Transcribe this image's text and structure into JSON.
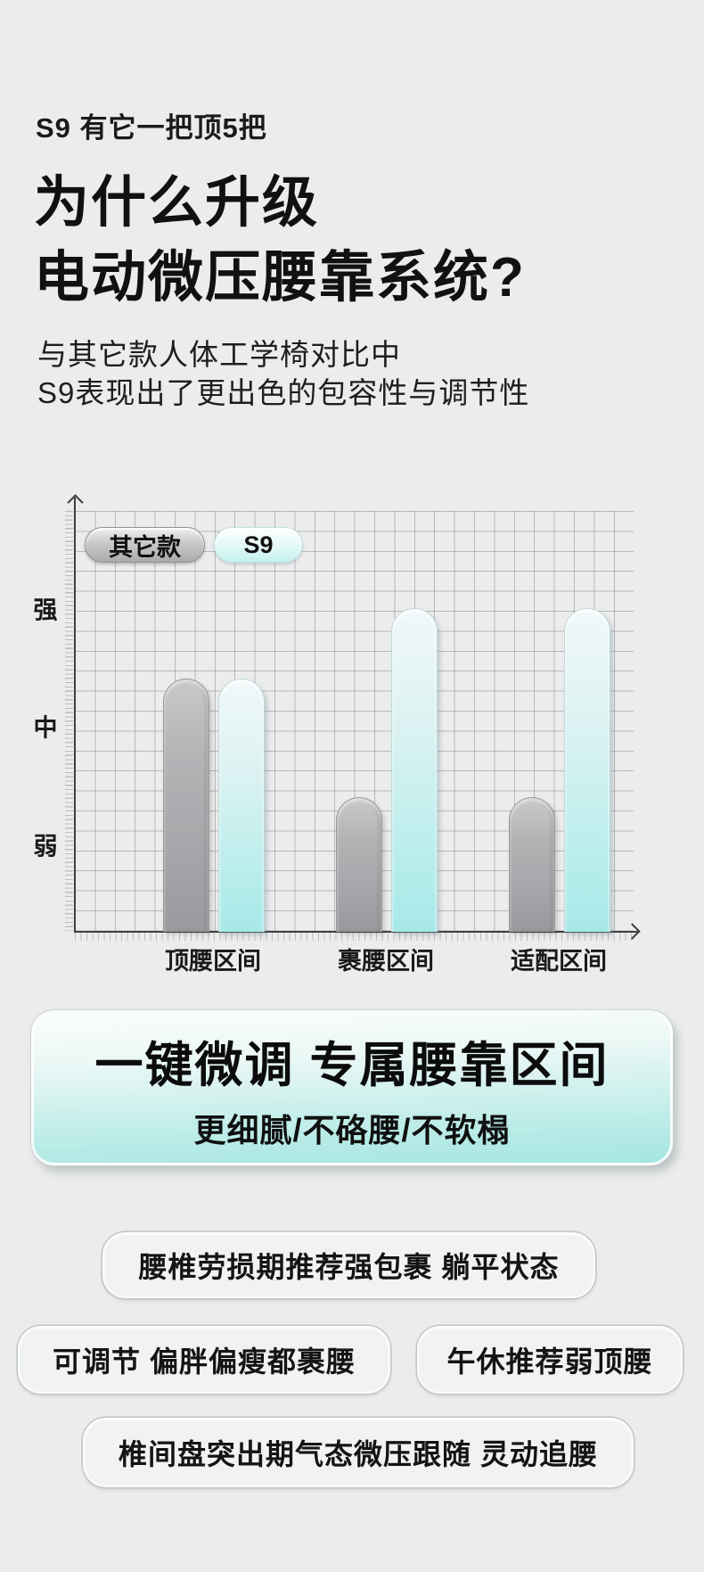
{
  "page": {
    "kicker": "S9 有它一把顶5把",
    "title_line1": "为什么升级",
    "title_line2": "电动微压腰靠系统?",
    "subtitle_line1": "与其它款人体工学椅对比中",
    "subtitle_line2": "S9表现出了更出色的包容性与调节性"
  },
  "chart_data": {
    "type": "bar",
    "categories": [
      "顶腰区间",
      "裹腰区间",
      "适配区间"
    ],
    "series": [
      {
        "name": "其它款",
        "values": [
          2.4,
          1.4,
          1.4
        ]
      },
      {
        "name": "S9",
        "values": [
          2.4,
          3.0,
          3.0
        ]
      }
    ],
    "y_tick_labels": [
      "弱",
      "中",
      "强"
    ],
    "y_tick_levels": [
      1,
      2,
      3
    ],
    "ylim": [
      0,
      3.55
    ],
    "grid": true,
    "legend_position": "top-left",
    "legend": [
      "其它款",
      "S9"
    ],
    "colors": {
      "other_bar_top": "#c9c9cb",
      "other_bar_bottom": "#9a9a9e",
      "s9_bar_top": "#f1f8f9",
      "s9_bar_bottom": "#a6e9e8",
      "grid_line": "#80808a",
      "axis": "#3f3f3f"
    }
  },
  "banner": {
    "title": "一键微调 专属腰靠区间",
    "subtitle": "更细腻/不硌腰/不软榻"
  },
  "feature_pills": [
    {
      "label": "腰椎劳损期推荐强包裹 躺平状态"
    },
    {
      "label": "可调节 偏胖偏瘦都裹腰"
    },
    {
      "label": "午休推荐弱顶腰"
    },
    {
      "label": "椎间盘突出期气态微压跟随 灵动追腰"
    }
  ],
  "theme": {
    "background": "#ececec",
    "accent_cyan": "#a6e9e8",
    "text": "#141414"
  }
}
